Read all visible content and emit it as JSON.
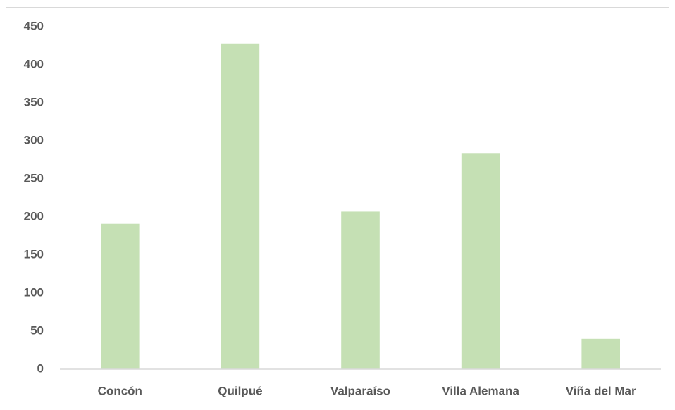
{
  "chart_data": {
    "type": "bar",
    "categories": [
      "Concón",
      "Quilpué",
      "Valparaíso",
      "Villa Alemana",
      "Viña del Mar"
    ],
    "values": [
      191,
      428,
      207,
      284,
      40
    ],
    "color": "#c5e0b4",
    "ylim": [
      0,
      450
    ],
    "yticks": [
      0,
      50,
      100,
      150,
      200,
      250,
      300,
      350,
      400,
      450
    ],
    "grid": false
  }
}
